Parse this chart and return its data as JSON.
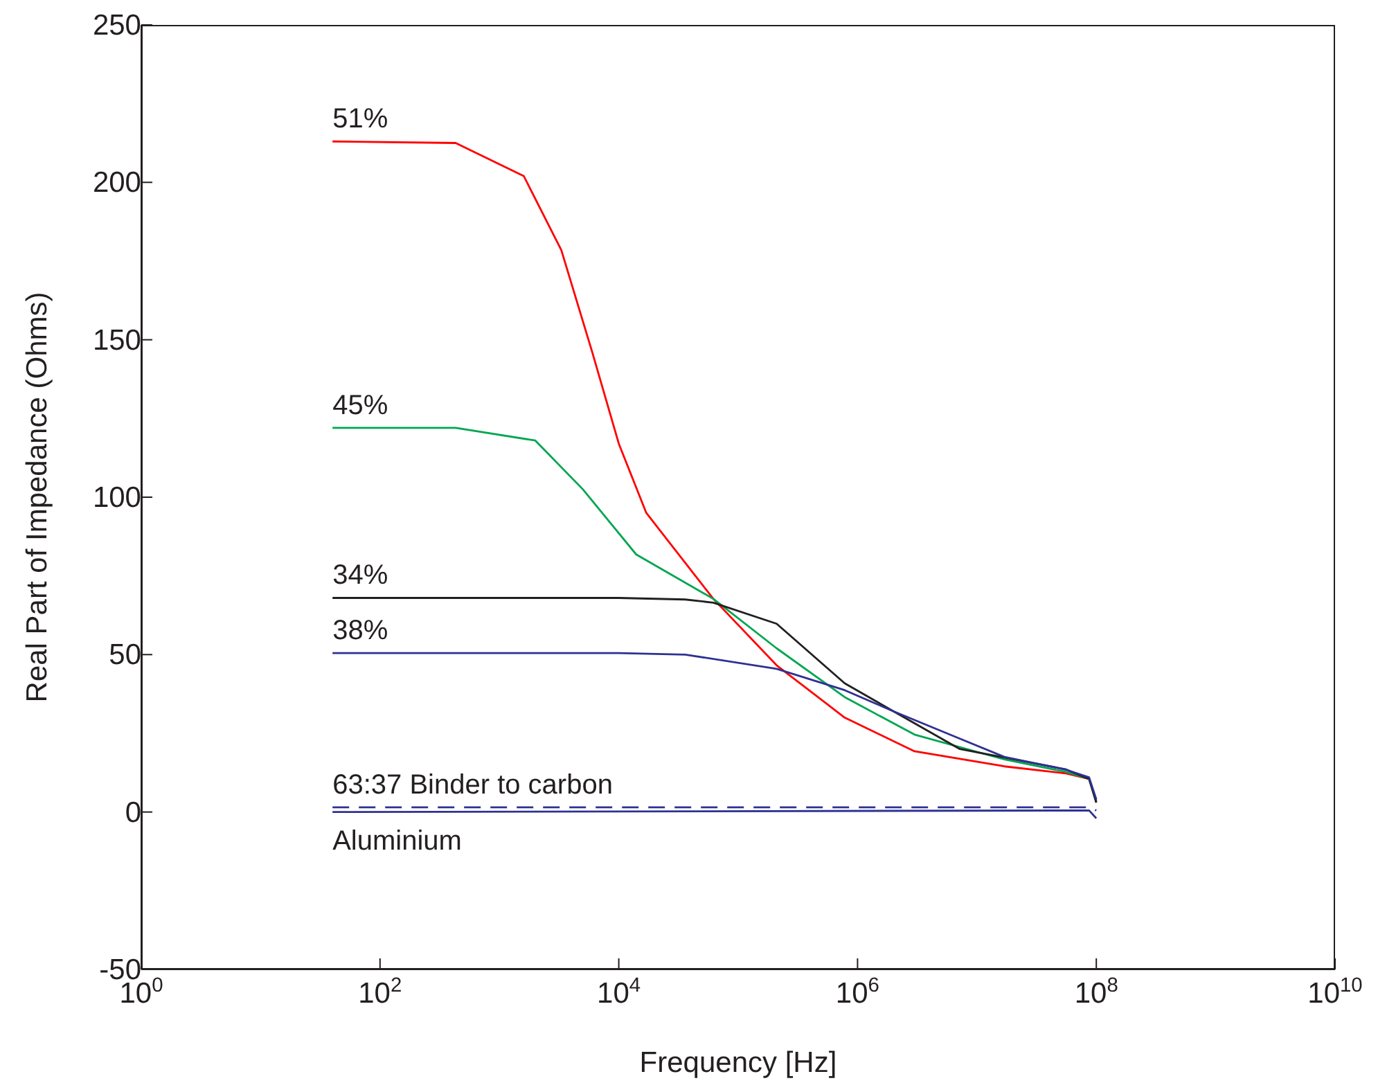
{
  "chart_data": {
    "type": "line",
    "xlabel": "Frequency [Hz]",
    "ylabel": "Real Part of Impedance (Ohms)",
    "log": "x",
    "grid": false,
    "legend": false,
    "marker": "none",
    "xlim": [
      1,
      10000000000
    ],
    "xticks": [
      {
        "value": 1,
        "label": "10$^{0}$"
      },
      {
        "value": 100,
        "label": "10$^{2}$"
      },
      {
        "value": 10000,
        "label": "10$^{4}$"
      },
      {
        "value": 1000000,
        "label": "10$^{6}$"
      },
      {
        "value": 100000000,
        "label": "10$^{8}$"
      },
      {
        "value": 10000000000,
        "label": "10$^{10}$"
      }
    ],
    "ylim": [
      -50,
      250
    ],
    "yticks": [
      -50,
      0,
      50,
      100,
      150,
      200,
      250
    ],
    "series": [
      {
        "name": "51%",
        "color": "#ff0000",
        "x": [
          40,
          430,
          1600,
          3300,
          6000,
          10000,
          17000,
          62000,
          210000,
          780000,
          3000000,
          17000000,
          55000000,
          87000000,
          100000000
        ],
        "values": [
          213,
          212.5,
          202,
          178.5,
          146,
          117,
          95,
          67.7,
          46.6,
          30,
          19.3,
          14.5,
          12.3,
          10.5,
          3.5
        ]
      },
      {
        "name": "45%",
        "color": "#00a651",
        "x": [
          40,
          430,
          2000,
          5000,
          14000,
          62000,
          210000,
          780000,
          3000000,
          17000000,
          55000000,
          87000000,
          100000000
        ],
        "values": [
          122,
          122,
          118,
          102.5,
          81.8,
          67.7,
          52,
          36.5,
          24.6,
          16.7,
          12.8,
          10.5,
          3
        ]
      },
      {
        "name": "34%",
        "color": "#231f20",
        "x": [
          40,
          10000,
          36000,
          62000,
          210000,
          780000,
          2000000,
          7200000,
          55000000,
          87000000,
          100000000
        ],
        "values": [
          68,
          68,
          67.5,
          66.5,
          59.8,
          40.9,
          32,
          20,
          13.6,
          10.5,
          3
        ]
      },
      {
        "name": "38%",
        "color": "#2e3192",
        "x": [
          40,
          10000,
          36000,
          210000,
          780000,
          2000000,
          7200000,
          17000000,
          55000000,
          87000000,
          100000000
        ],
        "values": [
          50.5,
          50.5,
          50,
          45.5,
          38.7,
          32,
          23.3,
          17.5,
          13.5,
          11,
          4
        ]
      },
      {
        "name": "63:37 Binder to carbon",
        "color": "#2e3192",
        "line_style": "dashed",
        "x": [
          40,
          87000000,
          100000000
        ],
        "values": [
          1.5,
          1.5,
          0.5
        ]
      },
      {
        "name": "Aluminium",
        "color": "#2e3192",
        "x": [
          40,
          87000000,
          100000000
        ],
        "values": [
          0,
          0.5,
          -2
        ]
      }
    ]
  }
}
